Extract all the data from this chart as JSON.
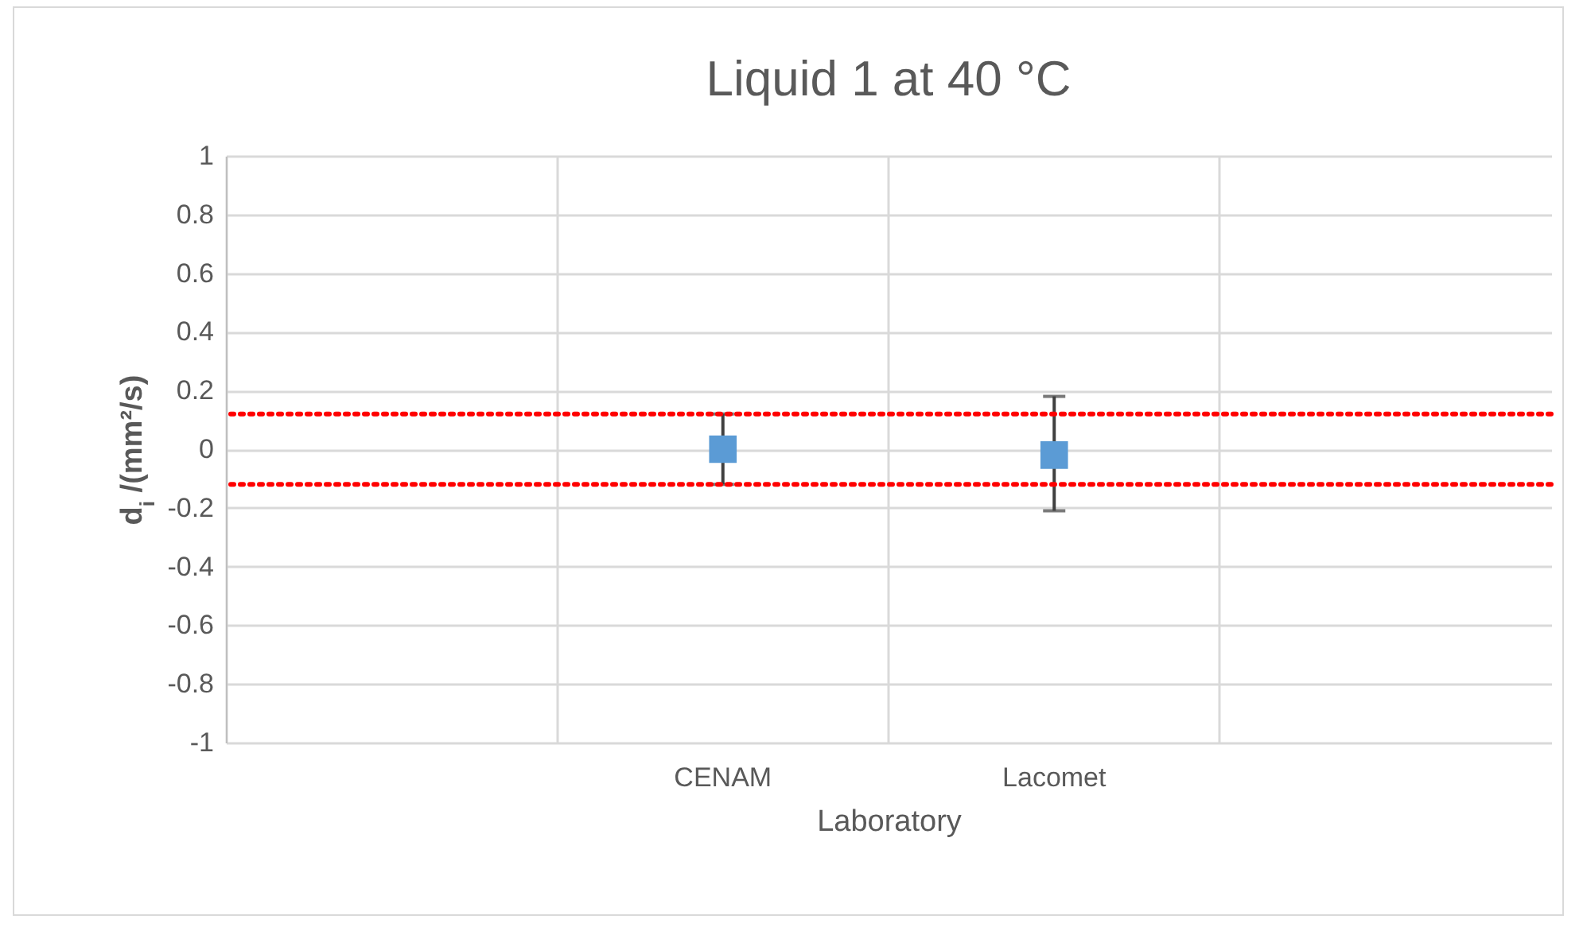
{
  "chart_data": {
    "type": "scatter",
    "title": "Liquid 1 at 40 °C",
    "xlabel": "Laboratory",
    "ylabel": "d$_{i}$ /(mm²/s)",
    "categories": [
      null,
      "CENAM",
      "Lacomet",
      null
    ],
    "series": [
      {
        "color": "#5b9bd5",
        "values": [
          null,
          0,
          -0.02,
          null
        ],
        "errors": [
          null,
          0.12,
          [
            -0.21,
            0.18
          ],
          null
        ]
      }
    ],
    "ylim": [
      -1,
      1
    ],
    "yticks": [
      -1,
      -0.8,
      -0.6,
      -0.4,
      -0.2,
      0,
      0.2,
      0.4,
      0.6,
      0.8,
      1
    ],
    "ref_lines": [
      {
        "axis": "y",
        "value": 0.12,
        "color": "#ff0000",
        "line_style": "dotted"
      },
      {
        "axis": "y",
        "value": -0.12,
        "color": "#ff0000",
        "line_style": "dotted"
      }
    ],
    "grid": true,
    "marker": "square"
  }
}
